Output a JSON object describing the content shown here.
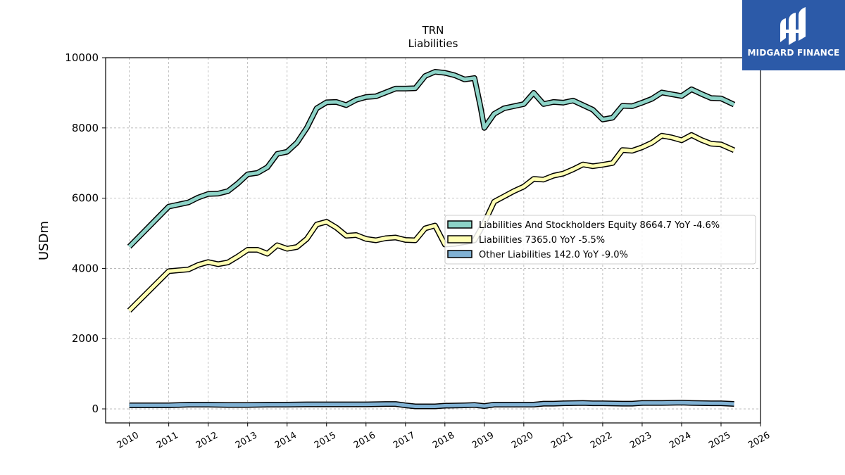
{
  "chart_data": {
    "type": "line",
    "title": "TRN",
    "subtitle": "Liabilities",
    "ylabel": "USDm",
    "xlabel": "",
    "xlim": [
      2009.4,
      2026.0
    ],
    "ylim": [
      -400,
      10000
    ],
    "x_ticks": [
      "2010",
      "2011",
      "2012",
      "2013",
      "2014",
      "2015",
      "2016",
      "2017",
      "2018",
      "2019",
      "2020",
      "2021",
      "2022",
      "2023",
      "2024",
      "2025",
      "2026"
    ],
    "y_ticks": [
      "0",
      "2000",
      "4000",
      "6000",
      "8000",
      "10000"
    ],
    "grid": true,
    "legend_position": "center-right",
    "series": [
      {
        "name": "Liabilities And Stockholders Equity  8664.7 YoY -4.6%",
        "color": "#8dd3c7",
        "points": [
          [
            2010.0,
            4620
          ],
          [
            2011.0,
            5760
          ],
          [
            2011.5,
            5880
          ],
          [
            2011.75,
            6020
          ],
          [
            2012.0,
            6120
          ],
          [
            2012.25,
            6130
          ],
          [
            2012.5,
            6200
          ],
          [
            2012.75,
            6420
          ],
          [
            2013.0,
            6680
          ],
          [
            2013.25,
            6720
          ],
          [
            2013.5,
            6880
          ],
          [
            2013.75,
            7260
          ],
          [
            2014.0,
            7320
          ],
          [
            2014.25,
            7580
          ],
          [
            2014.5,
            8000
          ],
          [
            2014.75,
            8560
          ],
          [
            2015.0,
            8730
          ],
          [
            2015.25,
            8740
          ],
          [
            2015.5,
            8650
          ],
          [
            2015.75,
            8800
          ],
          [
            2016.0,
            8880
          ],
          [
            2016.25,
            8900
          ],
          [
            2016.5,
            9010
          ],
          [
            2016.75,
            9120
          ],
          [
            2017.0,
            9120
          ],
          [
            2017.25,
            9130
          ],
          [
            2017.5,
            9480
          ],
          [
            2017.75,
            9600
          ],
          [
            2018.0,
            9570
          ],
          [
            2018.25,
            9500
          ],
          [
            2018.5,
            9380
          ],
          [
            2018.75,
            9420
          ],
          [
            2018.9,
            8620
          ],
          [
            2019.0,
            8000
          ],
          [
            2019.25,
            8400
          ],
          [
            2019.5,
            8560
          ],
          [
            2019.75,
            8620
          ],
          [
            2020.0,
            8680
          ],
          [
            2020.25,
            9000
          ],
          [
            2020.5,
            8680
          ],
          [
            2020.75,
            8740
          ],
          [
            2021.0,
            8720
          ],
          [
            2021.25,
            8780
          ],
          [
            2021.5,
            8650
          ],
          [
            2021.75,
            8520
          ],
          [
            2022.0,
            8240
          ],
          [
            2022.25,
            8290
          ],
          [
            2022.5,
            8630
          ],
          [
            2022.75,
            8620
          ],
          [
            2023.0,
            8720
          ],
          [
            2023.25,
            8830
          ],
          [
            2023.5,
            9010
          ],
          [
            2023.75,
            8960
          ],
          [
            2024.0,
            8910
          ],
          [
            2024.25,
            9100
          ],
          [
            2024.5,
            8970
          ],
          [
            2024.75,
            8850
          ],
          [
            2025.0,
            8840
          ],
          [
            2025.33,
            8665
          ]
        ]
      },
      {
        "name": "Liabilities  7365.0 YoY -5.5%",
        "color": "#ffffb3",
        "points": [
          [
            2010.0,
            2800
          ],
          [
            2011.0,
            3920
          ],
          [
            2011.5,
            3970
          ],
          [
            2011.75,
            4100
          ],
          [
            2012.0,
            4180
          ],
          [
            2012.25,
            4120
          ],
          [
            2012.5,
            4170
          ],
          [
            2012.75,
            4340
          ],
          [
            2013.0,
            4530
          ],
          [
            2013.25,
            4530
          ],
          [
            2013.5,
            4420
          ],
          [
            2013.75,
            4660
          ],
          [
            2014.0,
            4560
          ],
          [
            2014.25,
            4610
          ],
          [
            2014.5,
            4840
          ],
          [
            2014.75,
            5250
          ],
          [
            2015.0,
            5330
          ],
          [
            2015.25,
            5160
          ],
          [
            2015.5,
            4930
          ],
          [
            2015.75,
            4950
          ],
          [
            2016.0,
            4840
          ],
          [
            2016.25,
            4800
          ],
          [
            2016.5,
            4860
          ],
          [
            2016.75,
            4880
          ],
          [
            2017.0,
            4810
          ],
          [
            2017.25,
            4800
          ],
          [
            2017.5,
            5140
          ],
          [
            2017.75,
            5220
          ],
          [
            2018.0,
            4680
          ],
          [
            2018.25,
            4700
          ],
          [
            2018.5,
            4750
          ],
          [
            2018.75,
            4800
          ],
          [
            2019.0,
            5300
          ],
          [
            2019.25,
            5900
          ],
          [
            2019.5,
            6050
          ],
          [
            2019.75,
            6200
          ],
          [
            2020.0,
            6330
          ],
          [
            2020.25,
            6550
          ],
          [
            2020.5,
            6530
          ],
          [
            2020.75,
            6640
          ],
          [
            2021.0,
            6700
          ],
          [
            2021.25,
            6820
          ],
          [
            2021.5,
            6960
          ],
          [
            2021.75,
            6910
          ],
          [
            2022.0,
            6950
          ],
          [
            2022.25,
            7000
          ],
          [
            2022.5,
            7370
          ],
          [
            2022.75,
            7350
          ],
          [
            2023.0,
            7450
          ],
          [
            2023.25,
            7580
          ],
          [
            2023.5,
            7780
          ],
          [
            2023.75,
            7730
          ],
          [
            2024.0,
            7650
          ],
          [
            2024.25,
            7800
          ],
          [
            2024.5,
            7660
          ],
          [
            2024.75,
            7550
          ],
          [
            2025.0,
            7530
          ],
          [
            2025.33,
            7365
          ]
        ]
      },
      {
        "name": "Other Liabilities  142.0 YoY -9.0%",
        "color": "#80b1d3",
        "points": [
          [
            2010.0,
            100
          ],
          [
            2011.0,
            100
          ],
          [
            2011.5,
            120
          ],
          [
            2012.0,
            120
          ],
          [
            2012.5,
            110
          ],
          [
            2013.0,
            110
          ],
          [
            2013.5,
            120
          ],
          [
            2014.0,
            120
          ],
          [
            2014.5,
            130
          ],
          [
            2015.0,
            130
          ],
          [
            2015.5,
            130
          ],
          [
            2016.0,
            130
          ],
          [
            2016.5,
            140
          ],
          [
            2016.75,
            140
          ],
          [
            2017.0,
            100
          ],
          [
            2017.25,
            70
          ],
          [
            2017.5,
            70
          ],
          [
            2017.75,
            70
          ],
          [
            2018.0,
            90
          ],
          [
            2018.5,
            100
          ],
          [
            2018.75,
            110
          ],
          [
            2019.0,
            80
          ],
          [
            2019.25,
            120
          ],
          [
            2019.5,
            120
          ],
          [
            2019.75,
            120
          ],
          [
            2020.0,
            120
          ],
          [
            2020.25,
            120
          ],
          [
            2020.5,
            150
          ],
          [
            2020.75,
            150
          ],
          [
            2021.0,
            160
          ],
          [
            2021.5,
            170
          ],
          [
            2021.75,
            160
          ],
          [
            2022.0,
            160
          ],
          [
            2022.5,
            150
          ],
          [
            2022.75,
            150
          ],
          [
            2023.0,
            170
          ],
          [
            2023.5,
            170
          ],
          [
            2024.0,
            180
          ],
          [
            2024.25,
            170
          ],
          [
            2024.75,
            160
          ],
          [
            2025.0,
            160
          ],
          [
            2025.33,
            142
          ]
        ]
      }
    ]
  },
  "logo": {
    "text": "MIDGARD FINANCE",
    "background": "#2c5aa8"
  }
}
